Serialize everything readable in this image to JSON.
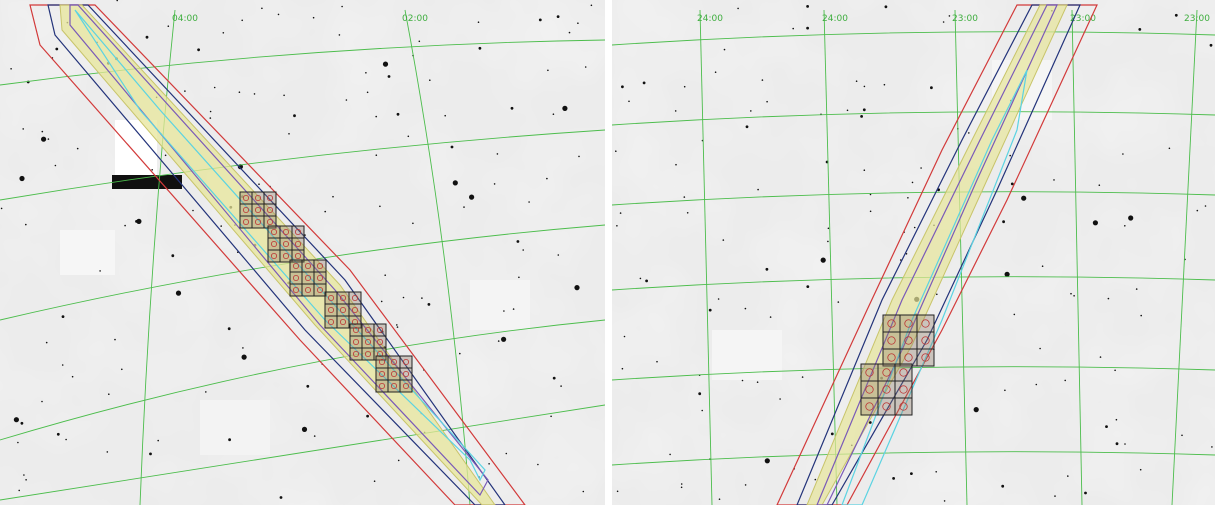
{
  "left_panel": {
    "ra_labels": [
      "04:00",
      "02:00"
    ],
    "colors": {
      "grid": "#4cbd4c",
      "outer": "#d23a3a",
      "navy": "#23337a",
      "purple": "#7a5ab8",
      "yellow": "#e7e59a",
      "cyan": "#5bd3e2",
      "tile": "#5a4a3a"
    }
  },
  "right_panel": {
    "ra_labels": [
      "24:00",
      "24:00",
      "23:00",
      "23:00",
      "23:00"
    ]
  }
}
